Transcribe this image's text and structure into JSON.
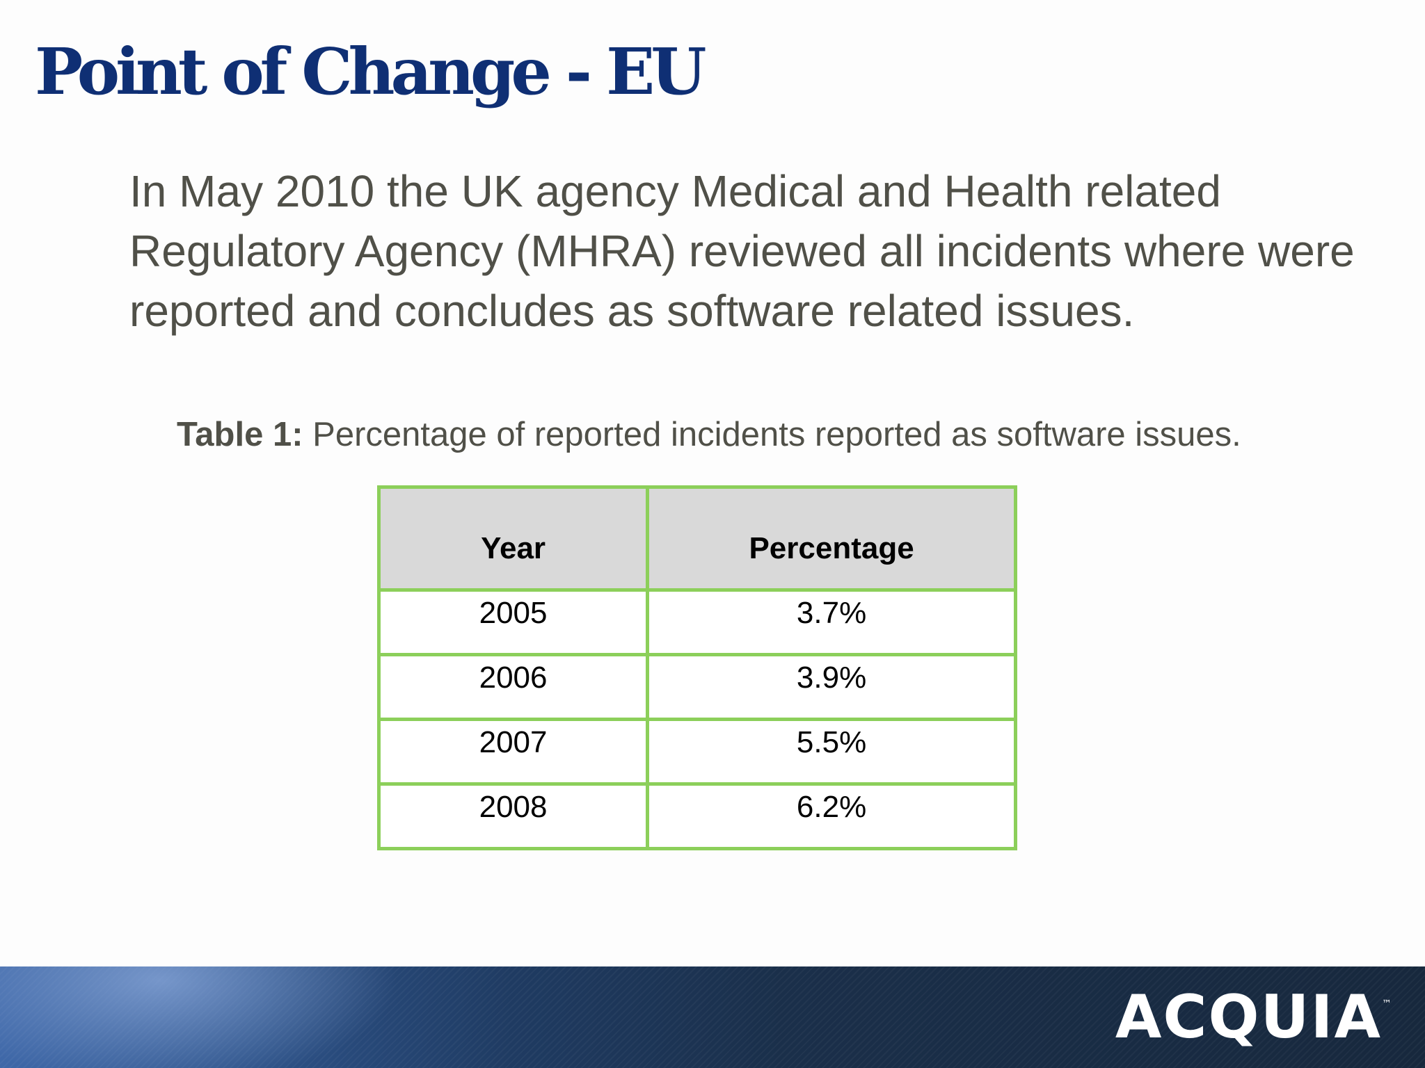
{
  "slide": {
    "title": "Point of Change - EU",
    "intro": "In May 2010 the UK agency Medical and Health related Regulatory Agency (MHRA) reviewed all incidents where were reported and concludes as software related issues.",
    "caption_label": "Table 1:",
    "caption_text": " Percentage of reported incidents reported as software issues."
  },
  "table": {
    "headers": [
      "Year",
      "Percentage"
    ],
    "rows": [
      [
        "2005",
        "3.7%"
      ],
      [
        "2006",
        "3.9%"
      ],
      [
        "2007",
        "5.5%"
      ],
      [
        "2008",
        "6.2%"
      ]
    ]
  },
  "footer": {
    "logo_text": "ACQUIA",
    "logo_tm": "™"
  }
}
